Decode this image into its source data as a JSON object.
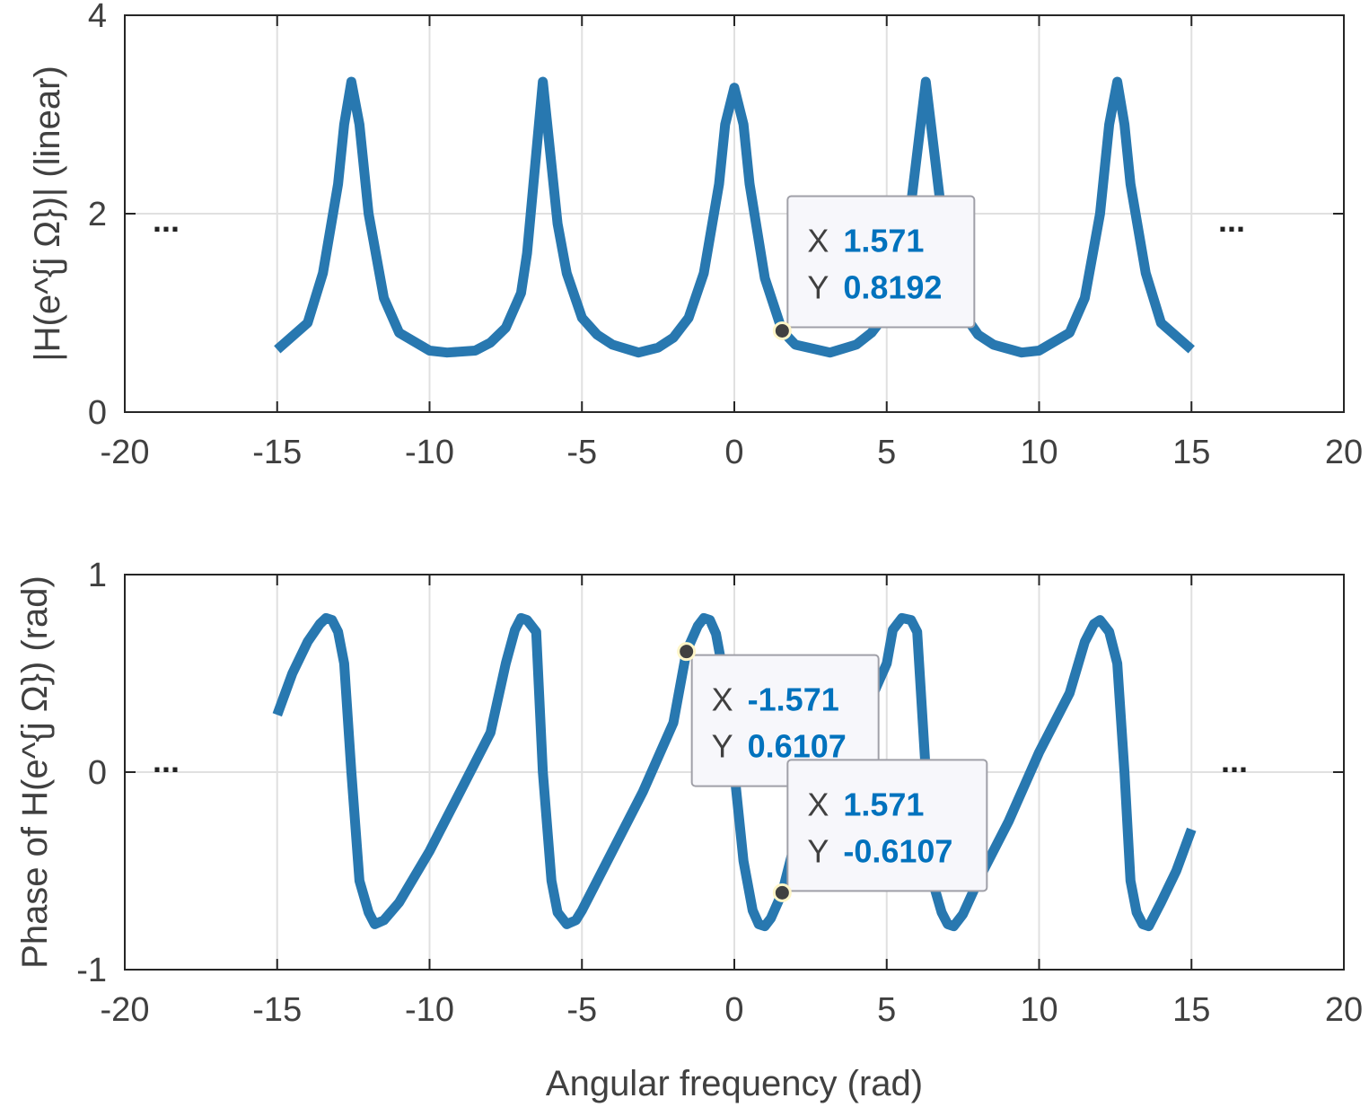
{
  "chart_data": [
    {
      "type": "line",
      "ylabel": "|H(e^{j Ω})| (linear)",
      "xlim": [
        -20,
        20
      ],
      "ylim": [
        0,
        4
      ],
      "xticks": [
        "-20",
        "-15",
        "-10",
        "-5",
        "0",
        "5",
        "10",
        "15",
        "20"
      ],
      "yticks": [
        "0",
        "2",
        "4"
      ],
      "grid": true,
      "color": "#2878b0",
      "series": [
        {
          "x": [
            -15,
            -14,
            -13.5,
            -13,
            -12.8,
            -12.566,
            -12.3,
            -12,
            -11.5,
            -11,
            -10,
            -9.425,
            -8.5,
            -8,
            -7.5,
            -7,
            -6.8,
            -6.283,
            -5.8,
            -5.5,
            -5,
            -4.5,
            -4,
            -3.142,
            -2.5,
            -2,
            -1.5,
            -1,
            -0.5,
            -0.3,
            0,
            0.3,
            0.5,
            1,
            1.571,
            2,
            3.142,
            4,
            4.5,
            5,
            5.5,
            5.8,
            6.283,
            6.8,
            7,
            7.5,
            8,
            8.5,
            9.425,
            10,
            11,
            11.5,
            12,
            12.3,
            12.566,
            12.8,
            13,
            13.5,
            14,
            15
          ],
          "y": [
            0.63,
            0.9,
            1.4,
            2.3,
            2.9,
            3.33,
            2.9,
            2.0,
            1.15,
            0.8,
            0.62,
            0.6,
            0.62,
            0.7,
            0.85,
            1.2,
            1.6,
            3.33,
            1.9,
            1.4,
            0.95,
            0.78,
            0.68,
            0.6,
            0.65,
            0.75,
            0.95,
            1.4,
            2.3,
            2.9,
            3.27,
            2.9,
            2.3,
            1.35,
            0.8192,
            0.68,
            0.6,
            0.68,
            0.8,
            1.0,
            1.5,
            2.1,
            3.33,
            2.0,
            1.5,
            1.0,
            0.78,
            0.68,
            0.6,
            0.62,
            0.8,
            1.15,
            2.0,
            2.9,
            3.33,
            2.9,
            2.3,
            1.4,
            0.9,
            0.63
          ]
        }
      ],
      "annotations": [
        {
          "x_label": "X",
          "x_value": "1.571",
          "y_label": "Y",
          "y_value": "0.8192",
          "x": 1.571,
          "y": 0.8192
        }
      ],
      "ellipsis": [
        "...",
        "..."
      ]
    },
    {
      "type": "line",
      "ylabel": "Phase of H(e^{j Ω}) (rad)",
      "xlabel": "Angular frequency (rad)",
      "xlim": [
        -20,
        20
      ],
      "ylim": [
        -1,
        1
      ],
      "xticks": [
        "-20",
        "-15",
        "-10",
        "-5",
        "0",
        "5",
        "10",
        "15",
        "20"
      ],
      "yticks": [
        "-1",
        "0",
        "1"
      ],
      "grid": true,
      "color": "#2878b0",
      "series": [
        {
          "x": [
            -15,
            -14.5,
            -14,
            -13.6,
            -13.4,
            -13.2,
            -13,
            -12.8,
            -12.566,
            -12.3,
            -12,
            -11.8,
            -11.5,
            -11,
            -10,
            -9,
            -8,
            -7.5,
            -7.2,
            -7,
            -6.8,
            -6.5,
            -6.283,
            -6,
            -5.8,
            -5.5,
            -5.2,
            -5,
            -4,
            -3,
            -2,
            -1.571,
            -1.2,
            -1,
            -0.8,
            -0.6,
            -0.3,
            0,
            0.3,
            0.6,
            0.8,
            1,
            1.2,
            1.571,
            2,
            3,
            4,
            5,
            5.2,
            5.5,
            5.8,
            6,
            6.283,
            6.5,
            6.8,
            7,
            7.2,
            7.5,
            8,
            9,
            10,
            11,
            11.5,
            11.8,
            12,
            12.3,
            12.566,
            12.8,
            13,
            13.2,
            13.4,
            13.6,
            14,
            14.5,
            15
          ],
          "y": [
            0.29,
            0.5,
            0.66,
            0.75,
            0.78,
            0.77,
            0.71,
            0.55,
            0.0,
            -0.55,
            -0.71,
            -0.77,
            -0.75,
            -0.66,
            -0.4,
            -0.1,
            0.2,
            0.55,
            0.72,
            0.78,
            0.77,
            0.71,
            0.0,
            -0.55,
            -0.71,
            -0.77,
            -0.75,
            -0.7,
            -0.4,
            -0.1,
            0.25,
            0.6107,
            0.74,
            0.78,
            0.77,
            0.7,
            0.45,
            0.0,
            -0.45,
            -0.7,
            -0.77,
            -0.78,
            -0.74,
            -0.6107,
            -0.35,
            -0.1,
            0.2,
            0.55,
            0.72,
            0.78,
            0.77,
            0.71,
            0.0,
            -0.55,
            -0.71,
            -0.77,
            -0.78,
            -0.72,
            -0.55,
            -0.25,
            0.1,
            0.4,
            0.66,
            0.75,
            0.77,
            0.71,
            0.55,
            0.0,
            -0.55,
            -0.71,
            -0.77,
            -0.78,
            -0.66,
            -0.5,
            -0.29
          ]
        }
      ],
      "annotations": [
        {
          "x_label": "X",
          "x_value": "-1.571",
          "y_label": "Y",
          "y_value": "0.6107",
          "x": -1.571,
          "y": 0.6107
        },
        {
          "x_label": "X",
          "x_value": "1.571",
          "y_label": "Y",
          "y_value": "-0.6107",
          "x": 1.571,
          "y": -0.6107
        }
      ],
      "ellipsis": [
        "...",
        "..."
      ]
    }
  ]
}
